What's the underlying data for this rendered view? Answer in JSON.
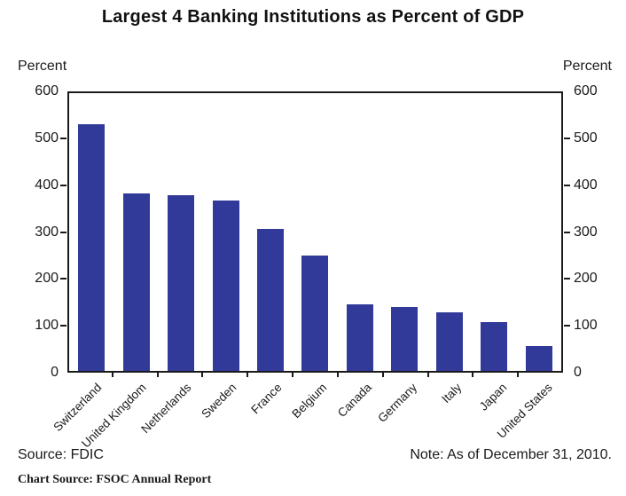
{
  "chart_data": {
    "type": "bar",
    "title": "Largest 4 Banking Institutions as Percent of GDP",
    "unit_label_left": "Percent",
    "unit_label_right": "Percent",
    "categories": [
      "Switzerland",
      "United Kingdom",
      "Netherlands",
      "Sweden",
      "France",
      "Belgium",
      "Canada",
      "Germany",
      "Italy",
      "Japan",
      "United States"
    ],
    "values": [
      533,
      384,
      379,
      369,
      307,
      250,
      143,
      139,
      127,
      105,
      53
    ],
    "ylim": [
      0,
      600
    ],
    "yticks": [
      0,
      100,
      200,
      300,
      400,
      500,
      600
    ],
    "bar_color": "#323a99",
    "grid": false,
    "legend": "none",
    "xlabel": "",
    "ylabel": "Percent"
  },
  "footer": {
    "source": "Source: FDIC",
    "note": "Note: As of December 31, 2010.",
    "chart_source": "Chart Source:  FSOC Annual Report"
  }
}
